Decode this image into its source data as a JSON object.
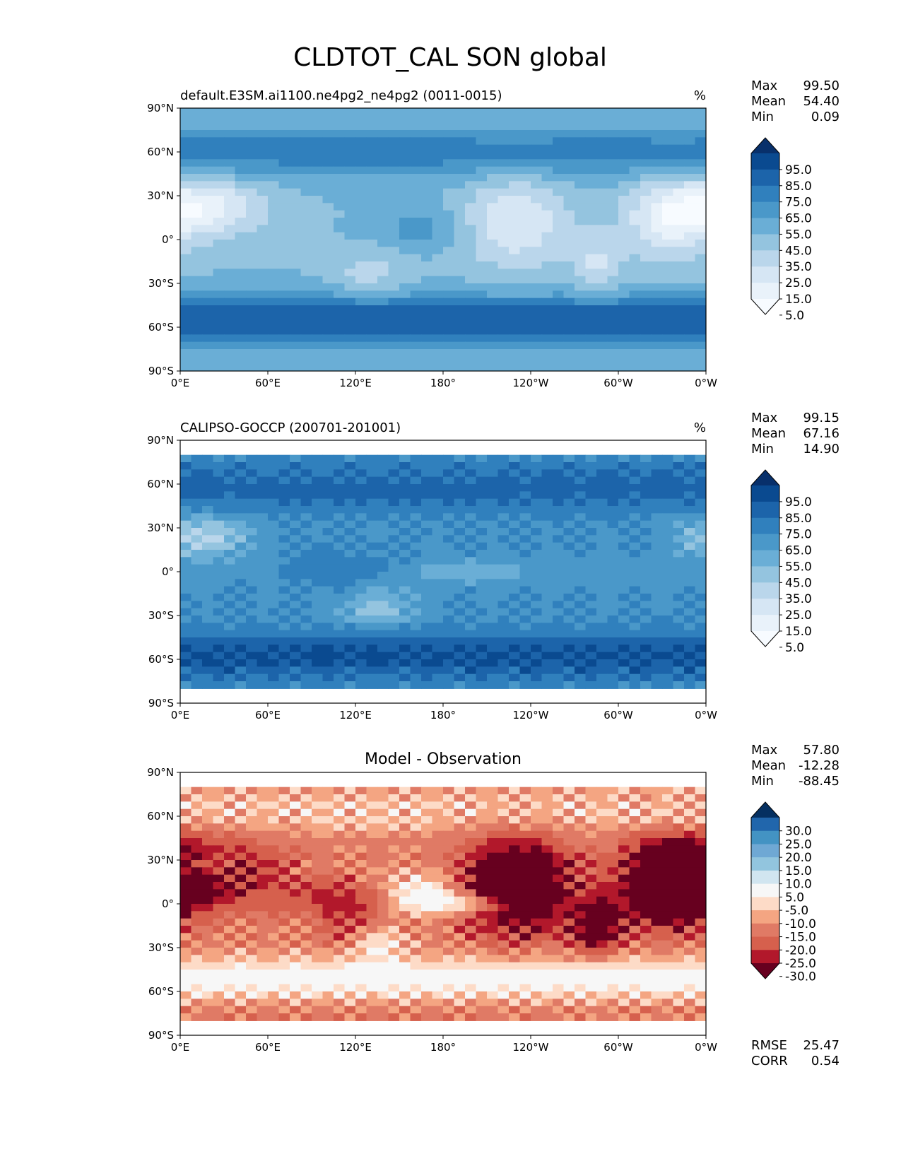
{
  "title": "CLDTOT_CAL SON global",
  "chart_data": [
    {
      "type": "heatmap",
      "subtitle_left": "default.E3SM.ai1100.ne4pg2_ne4pg2 (0011-0015)",
      "subtitle_right": "%",
      "xticks": [
        "0°E",
        "60°E",
        "120°E",
        "180°",
        "120°W",
        "60°W",
        "0°W"
      ],
      "yticks": [
        "90°N",
        "60°N",
        "30°N",
        "0°",
        "30°S",
        "60°S",
        "90°S"
      ],
      "xlim": [
        0,
        360
      ],
      "ylim": [
        -90,
        90
      ],
      "stats": [
        {
          "label": "Max",
          "value": "99.50"
        },
        {
          "label": "Mean",
          "value": "54.40"
        },
        {
          "label": "Min",
          "value": "0.09"
        }
      ],
      "colorbar": {
        "levels": [
          "95.0",
          "85.0",
          "75.0",
          "65.0",
          "55.0",
          "45.0",
          "35.0",
          "25.0",
          "15.0",
          "5.0"
        ],
        "colors": [
          "#08306b",
          "#0a4a90",
          "#1c64aa",
          "#3080bd",
          "#4a98c9",
          "#6aaed6",
          "#94c4df",
          "#bad6eb",
          "#d6e6f4",
          "#e9f2fa",
          "#f7fbff"
        ],
        "extend": "both"
      },
      "coverage_lat": [
        -90,
        90
      ],
      "field_key": "model"
    },
    {
      "type": "heatmap",
      "subtitle_left": "CALIPSO-GOCCP (200701-201001)",
      "subtitle_right": "%",
      "xticks": [
        "0°E",
        "60°E",
        "120°E",
        "180°",
        "120°W",
        "60°W",
        "0°W"
      ],
      "yticks": [
        "90°N",
        "60°N",
        "30°N",
        "0°",
        "30°S",
        "60°S",
        "90°S"
      ],
      "xlim": [
        0,
        360
      ],
      "ylim": [
        -90,
        90
      ],
      "stats": [
        {
          "label": "Max",
          "value": "99.15"
        },
        {
          "label": "Mean",
          "value": "67.16"
        },
        {
          "label": "Min",
          "value": "14.90"
        }
      ],
      "colorbar": {
        "levels": [
          "95.0",
          "85.0",
          "75.0",
          "65.0",
          "55.0",
          "45.0",
          "35.0",
          "25.0",
          "15.0",
          "5.0"
        ],
        "colors": [
          "#08306b",
          "#0a4a90",
          "#1c64aa",
          "#3080bd",
          "#4a98c9",
          "#6aaed6",
          "#94c4df",
          "#bad6eb",
          "#d6e6f4",
          "#e9f2fa",
          "#f7fbff"
        ],
        "extend": "both"
      },
      "coverage_lat": [
        -82,
        82
      ],
      "field_key": "obs"
    },
    {
      "type": "heatmap",
      "subtitle_center": "Model - Observation",
      "xticks": [
        "0°E",
        "60°E",
        "120°E",
        "180°",
        "120°W",
        "60°W",
        "0°W"
      ],
      "yticks": [
        "90°N",
        "60°N",
        "30°N",
        "0°",
        "30°S",
        "60°S",
        "90°S"
      ],
      "xlim": [
        0,
        360
      ],
      "ylim": [
        -90,
        90
      ],
      "stats": [
        {
          "label": "Max",
          "value": "57.80"
        },
        {
          "label": "Mean",
          "value": "-12.28"
        },
        {
          "label": "Min",
          "value": "-88.45"
        }
      ],
      "colorbar": {
        "levels": [
          "30.0",
          "25.0",
          "20.0",
          "15.0",
          "10.0",
          "5.0",
          "-5.0",
          "-10.0",
          "-15.0",
          "-20.0",
          "-25.0",
          "-30.0"
        ],
        "colors": [
          "#053061",
          "#2166ac",
          "#4393c3",
          "#6fa8d4",
          "#92c5de",
          "#d1e5f0",
          "#f7f7f7",
          "#fddbc7",
          "#f4a582",
          "#e07a65",
          "#d6604d",
          "#b2182b",
          "#67001f"
        ],
        "extend": "both"
      },
      "coverage_lat": [
        -82,
        82
      ],
      "field_key": "diff",
      "metrics": [
        {
          "label": "RMSE",
          "value": "25.47"
        },
        {
          "label": "CORR",
          "value": "0.54"
        }
      ]
    }
  ]
}
